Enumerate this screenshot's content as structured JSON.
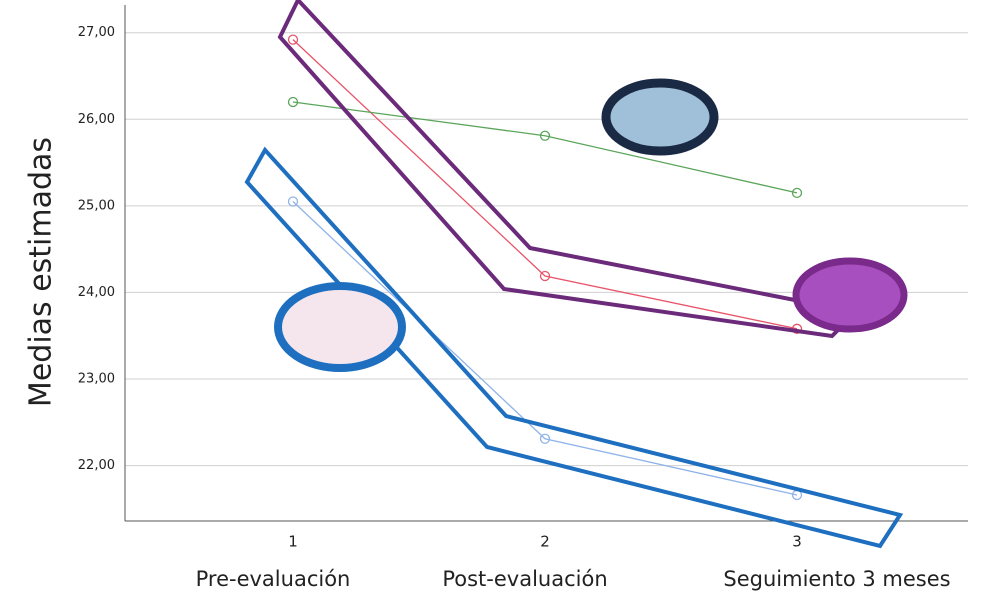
{
  "chart_data": {
    "type": "line",
    "y_label": "Medias estimadas",
    "categories": [
      "1",
      "2",
      "3"
    ],
    "category_labels": [
      "Pre-evaluación",
      "Post-evaluación",
      "Seguimiento 3 meses"
    ],
    "series": [
      {
        "color": "#e8546a",
        "values": [
          26.92,
          24.19,
          23.58
        ]
      },
      {
        "color": "#5aa55a",
        "values": [
          26.2,
          25.81,
          25.15
        ]
      },
      {
        "color": "#8fb4e8",
        "values": [
          25.05,
          22.31,
          21.66
        ]
      }
    ],
    "ylim": [
      21.36,
      27.32
    ],
    "yticks": [
      {
        "value": 22,
        "label": "22,00"
      },
      {
        "value": 23,
        "label": "23,00"
      },
      {
        "value": 24,
        "label": "24,00"
      },
      {
        "value": 25,
        "label": "25,00"
      },
      {
        "value": 26,
        "label": "26,00"
      },
      {
        "value": 27,
        "label": "27,00"
      }
    ],
    "grid": true
  }
}
